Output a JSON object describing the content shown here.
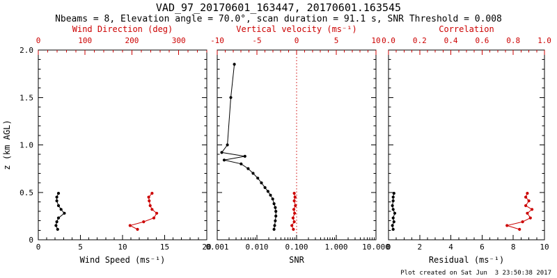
{
  "title": "VAD_97_20170601_163447, 20170601.163545",
  "subtitle": "Nbeams = 8, Elevation angle = 70.0°, scan duration = 91.1 s, SNR Threshold = 0.008",
  "footer": "Plot created on Sat Jun  3 23:50:38 2017",
  "colors": {
    "accent": "#cc0000",
    "foreground": "#000000",
    "background": "#ffffff"
  },
  "y_axis": {
    "label": "z (km AGL)",
    "min": 0,
    "max": 2,
    "ticks": [
      0,
      0.5,
      1,
      1.5,
      2
    ],
    "tick_labels": [
      "0",
      "0.5",
      "1.0",
      "1.5",
      "2.0"
    ],
    "minor_step": 0.1
  },
  "chart_data": [
    {
      "type": "scatter",
      "name": "wind",
      "bottom_axis": {
        "label": "Wind Speed (ms⁻¹)",
        "scale": "linear",
        "min": 0,
        "max": 20,
        "ticks": [
          0,
          5,
          10,
          15,
          20
        ],
        "tick_labels": [
          "0",
          "5",
          "10",
          "15",
          "20"
        ],
        "minor_step": 1
      },
      "top_axis": {
        "label": "Wind Direction (deg)",
        "scale": "linear",
        "min": 0,
        "max": 360,
        "ticks": [
          0,
          100,
          200,
          300
        ],
        "tick_labels": [
          "0",
          "100",
          "200",
          "300"
        ],
        "minor_step": 20
      },
      "series": [
        {
          "name": "wind-speed",
          "axis": "bottom",
          "color": "black",
          "points": [
            [
              2.3,
              0.11
            ],
            [
              2.1,
              0.15
            ],
            [
              2.2,
              0.19
            ],
            [
              2.4,
              0.23
            ],
            [
              3.1,
              0.28
            ],
            [
              2.7,
              0.32
            ],
            [
              2.4,
              0.36
            ],
            [
              2.2,
              0.41
            ],
            [
              2.2,
              0.45
            ],
            [
              2.4,
              0.49
            ]
          ]
        },
        {
          "name": "wind-direction",
          "axis": "top",
          "color": "red",
          "points": [
            [
              212,
              0.11
            ],
            [
              196,
              0.15
            ],
            [
              225,
              0.19
            ],
            [
              247,
              0.23
            ],
            [
              253,
              0.28
            ],
            [
              243,
              0.32
            ],
            [
              239,
              0.36
            ],
            [
              237,
              0.41
            ],
            [
              236,
              0.45
            ],
            [
              243,
              0.49
            ]
          ]
        }
      ]
    },
    {
      "type": "scatter",
      "name": "snr",
      "bottom_axis": {
        "label": "SNR",
        "scale": "log",
        "min": 0.001,
        "max": 10,
        "ticks": [
          0.001,
          0.01,
          0.1,
          1,
          10
        ],
        "tick_labels": [
          "0.001",
          "0.010",
          "0.100",
          "1.000",
          "10.000"
        ]
      },
      "top_axis": {
        "label": "Vertical velocity (ms⁻¹)",
        "scale": "linear",
        "min": -10,
        "max": 10,
        "ticks": [
          -10,
          -5,
          0,
          5,
          10
        ],
        "tick_labels": [
          "-10",
          "-5",
          "0",
          "5",
          "10"
        ],
        "minor_step": 1
      },
      "refline": {
        "axis": "top",
        "value": 0,
        "style": "dotted",
        "color": "red"
      },
      "series": [
        {
          "name": "snr-profile",
          "axis": "bottom",
          "color": "black",
          "points": [
            [
              0.0027,
              1.85
            ],
            [
              0.0022,
              1.5
            ],
            [
              0.0018,
              1.0
            ],
            [
              0.0013,
              0.92
            ],
            [
              0.005,
              0.88
            ],
            [
              0.0015,
              0.84
            ],
            [
              0.004,
              0.8
            ],
            [
              0.006,
              0.75
            ],
            [
              0.008,
              0.7
            ],
            [
              0.0105,
              0.65
            ],
            [
              0.013,
              0.6
            ],
            [
              0.016,
              0.55
            ],
            [
              0.019,
              0.51
            ],
            [
              0.022,
              0.47
            ],
            [
              0.025,
              0.43
            ],
            [
              0.027,
              0.38
            ],
            [
              0.029,
              0.34
            ],
            [
              0.03,
              0.3
            ],
            [
              0.03,
              0.25
            ],
            [
              0.029,
              0.2
            ],
            [
              0.028,
              0.15
            ],
            [
              0.027,
              0.11
            ]
          ]
        },
        {
          "name": "vertical-velocity",
          "axis": "top",
          "color": "red",
          "points": [
            [
              -0.4,
              0.11
            ],
            [
              -0.6,
              0.15
            ],
            [
              -0.3,
              0.19
            ],
            [
              -0.45,
              0.23
            ],
            [
              -0.25,
              0.28
            ],
            [
              -0.35,
              0.32
            ],
            [
              -0.15,
              0.36
            ],
            [
              -0.3,
              0.41
            ],
            [
              -0.2,
              0.45
            ],
            [
              -0.3,
              0.49
            ]
          ]
        }
      ]
    },
    {
      "type": "scatter",
      "name": "residual",
      "bottom_axis": {
        "label": "Residual (ms⁻¹)",
        "scale": "linear",
        "min": 0,
        "max": 10,
        "ticks": [
          0,
          2,
          4,
          6,
          8,
          10
        ],
        "tick_labels": [
          "0",
          "2",
          "4",
          "6",
          "8",
          "10"
        ],
        "minor_step": 0.5
      },
      "top_axis": {
        "label": "Correlation",
        "scale": "linear",
        "min": 0,
        "max": 1,
        "ticks": [
          0,
          0.2,
          0.4,
          0.6,
          0.8,
          1
        ],
        "tick_labels": [
          "0.0",
          "0.2",
          "0.4",
          "0.6",
          "0.8",
          "1.0"
        ],
        "minor_step": 0.05
      },
      "series": [
        {
          "name": "residual",
          "axis": "bottom",
          "color": "black",
          "points": [
            [
              0.3,
              0.11
            ],
            [
              0.25,
              0.15
            ],
            [
              0.35,
              0.19
            ],
            [
              0.3,
              0.23
            ],
            [
              0.4,
              0.28
            ],
            [
              0.3,
              0.32
            ],
            [
              0.25,
              0.36
            ],
            [
              0.3,
              0.41
            ],
            [
              0.3,
              0.45
            ],
            [
              0.35,
              0.49
            ]
          ]
        },
        {
          "name": "correlation",
          "axis": "top",
          "color": "red",
          "points": [
            [
              0.84,
              0.11
            ],
            [
              0.76,
              0.15
            ],
            [
              0.86,
              0.19
            ],
            [
              0.91,
              0.23
            ],
            [
              0.89,
              0.28
            ],
            [
              0.92,
              0.32
            ],
            [
              0.88,
              0.36
            ],
            [
              0.9,
              0.41
            ],
            [
              0.88,
              0.45
            ],
            [
              0.89,
              0.49
            ]
          ]
        }
      ]
    }
  ]
}
